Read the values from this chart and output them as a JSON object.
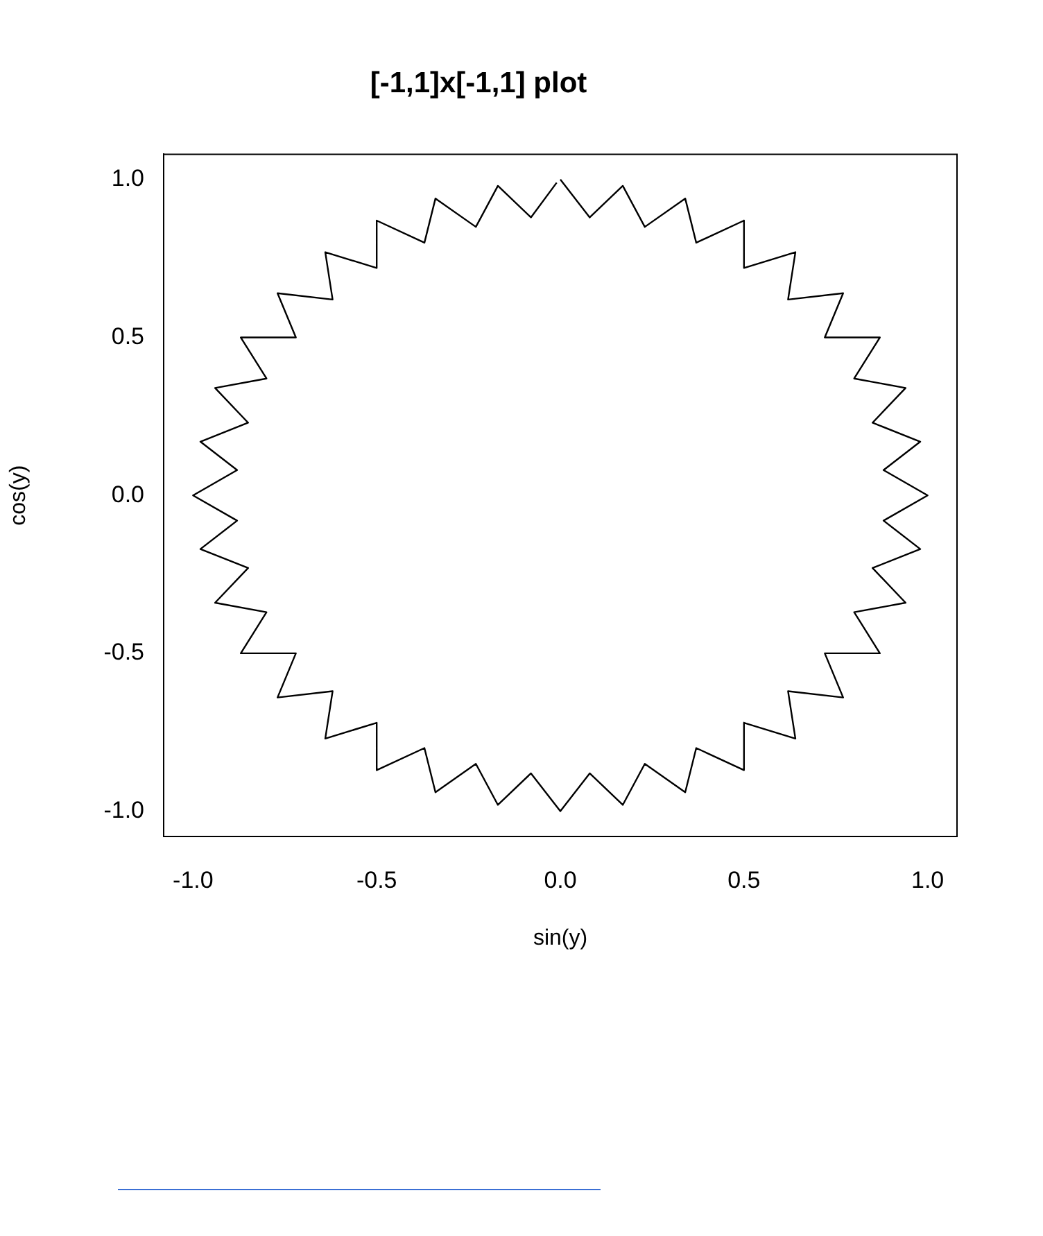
{
  "chart_data": {
    "type": "line",
    "title": "[-1,1]x[-1,1] plot",
    "xlabel": "sin(y)",
    "ylabel": "cos(y)",
    "xlim": [
      -1.08,
      1.08
    ],
    "ylim": [
      -1.08,
      1.08
    ],
    "xticks": [
      {
        "value": -1,
        "label": "-1.0"
      },
      {
        "value": -0.5,
        "label": "-0.5"
      },
      {
        "value": 0,
        "label": "0.0"
      },
      {
        "value": 0.5,
        "label": "0.5"
      },
      {
        "value": 1,
        "label": "1.0"
      }
    ],
    "yticks": [
      {
        "value": -1,
        "label": "-1.0"
      },
      {
        "value": -0.5,
        "label": "-0.5"
      },
      {
        "value": 0,
        "label": "0.0"
      },
      {
        "value": 0.5,
        "label": "0.5"
      },
      {
        "value": 1,
        "label": "1.0"
      }
    ],
    "grid": false,
    "legend": false,
    "marker": "none",
    "line_style": "solid",
    "x": [
      0,
      0.08,
      0.17,
      0.23,
      0.34,
      0.37,
      0.5,
      0.5,
      0.64,
      0.62,
      0.77,
      0.72,
      0.87,
      0.8,
      0.94,
      0.85,
      0.98,
      0.88,
      1,
      0.88,
      0.98,
      0.85,
      0.94,
      0.8,
      0.87,
      0.72,
      0.77,
      0.62,
      0.64,
      0.5,
      0.5,
      0.37,
      0.34,
      0.23,
      0.17,
      0.08,
      0,
      -0.08,
      -0.17,
      -0.23,
      -0.34,
      -0.37,
      -0.5,
      -0.5,
      -0.64,
      -0.62,
      -0.77,
      -0.72,
      -0.87,
      -0.8,
      -0.94,
      -0.85,
      -0.98,
      -0.88,
      -1,
      -0.88,
      -0.98,
      -0.85,
      -0.94,
      -0.8,
      -0.87,
      -0.72,
      -0.77,
      -0.62,
      -0.64,
      -0.5,
      -0.5,
      -0.37,
      -0.34,
      -0.23,
      -0.17,
      -0.08,
      -0.01
    ],
    "series": [
      {
        "color": "#000000",
        "values": [
          1,
          0.88,
          0.98,
          0.85,
          0.94,
          0.8,
          0.87,
          0.72,
          0.77,
          0.62,
          0.64,
          0.5,
          0.5,
          0.37,
          0.34,
          0.23,
          0.17,
          0.08,
          0,
          -0.08,
          -0.17,
          -0.23,
          -0.34,
          -0.37,
          -0.5,
          -0.5,
          -0.64,
          -0.62,
          -0.77,
          -0.72,
          -0.87,
          -0.8,
          -0.94,
          -0.85,
          -0.98,
          -0.88,
          -1,
          -0.88,
          -0.98,
          -0.85,
          -0.94,
          -0.8,
          -0.87,
          -0.72,
          -0.77,
          -0.62,
          -0.64,
          -0.5,
          -0.5,
          -0.37,
          -0.34,
          -0.23,
          -0.17,
          -0.08,
          0,
          0.08,
          0.17,
          0.23,
          0.34,
          0.37,
          0.5,
          0.5,
          0.64,
          0.62,
          0.77,
          0.72,
          0.87,
          0.8,
          0.94,
          0.85,
          0.98,
          0.88,
          0.99
        ]
      }
    ]
  }
}
